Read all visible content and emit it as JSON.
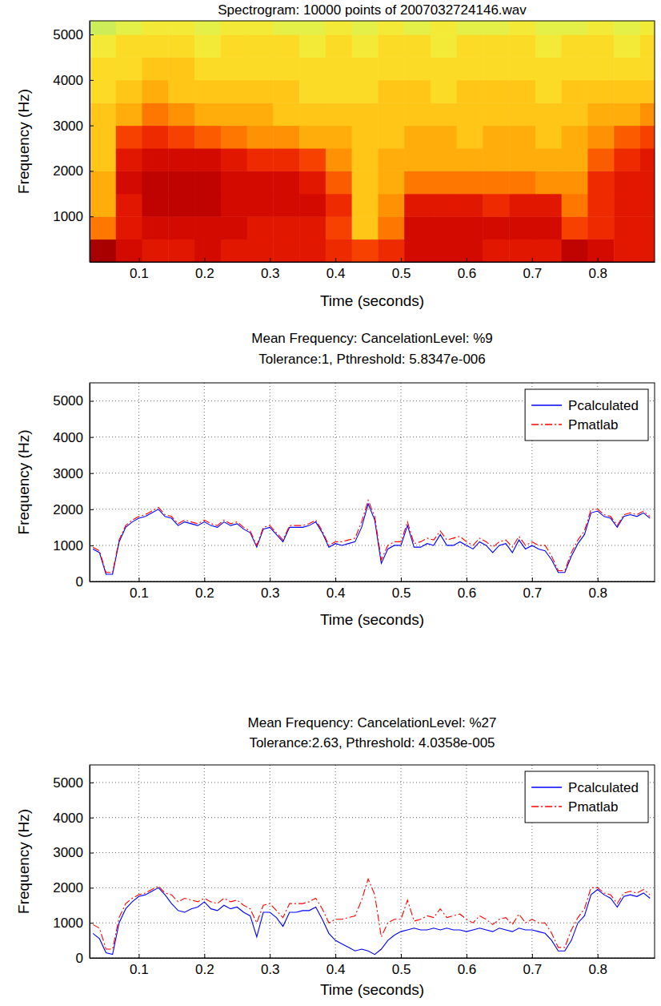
{
  "chart_data": [
    {
      "type": "heatmap",
      "title": "Spectrogram: 10000 points of 2007032724146.wav",
      "x_label": "Time (seconds)",
      "y_label": "Frequency (Hz)",
      "x": [
        0.045,
        0.085,
        0.125,
        0.165,
        0.205,
        0.245,
        0.285,
        0.325,
        0.365,
        0.405,
        0.445,
        0.485,
        0.525,
        0.565,
        0.605,
        0.645,
        0.685,
        0.725,
        0.765,
        0.805,
        0.845,
        0.885
      ],
      "y": [
        250,
        750,
        1250,
        1750,
        2250,
        2750,
        3250,
        3750,
        4250,
        4750,
        5250
      ],
      "values": [
        [
          0.95,
          0.85,
          0.8,
          0.8,
          0.85,
          0.8,
          0.8,
          0.8,
          0.8,
          0.75,
          0.7,
          0.75,
          0.85,
          0.85,
          0.85,
          0.8,
          0.8,
          0.8,
          0.9,
          0.85,
          0.8,
          0.8
        ],
        [
          0.6,
          0.8,
          0.85,
          0.85,
          0.85,
          0.85,
          0.8,
          0.8,
          0.8,
          0.7,
          0.45,
          0.6,
          0.85,
          0.85,
          0.85,
          0.85,
          0.85,
          0.85,
          0.7,
          0.75,
          0.8,
          0.8
        ],
        [
          0.5,
          0.8,
          0.9,
          0.9,
          0.9,
          0.85,
          0.85,
          0.85,
          0.85,
          0.75,
          0.45,
          0.55,
          0.8,
          0.8,
          0.8,
          0.75,
          0.8,
          0.8,
          0.6,
          0.75,
          0.8,
          0.8
        ],
        [
          0.5,
          0.85,
          0.9,
          0.9,
          0.9,
          0.85,
          0.85,
          0.85,
          0.8,
          0.65,
          0.45,
          0.5,
          0.6,
          0.6,
          0.6,
          0.6,
          0.6,
          0.55,
          0.55,
          0.75,
          0.8,
          0.8
        ],
        [
          0.45,
          0.8,
          0.85,
          0.85,
          0.85,
          0.8,
          0.75,
          0.75,
          0.7,
          0.55,
          0.45,
          0.5,
          0.5,
          0.5,
          0.5,
          0.5,
          0.5,
          0.5,
          0.5,
          0.65,
          0.75,
          0.8
        ],
        [
          0.45,
          0.7,
          0.75,
          0.7,
          0.65,
          0.6,
          0.55,
          0.55,
          0.5,
          0.5,
          0.45,
          0.45,
          0.5,
          0.5,
          0.45,
          0.5,
          0.5,
          0.45,
          0.5,
          0.55,
          0.65,
          0.7
        ],
        [
          0.45,
          0.5,
          0.6,
          0.55,
          0.5,
          0.5,
          0.5,
          0.45,
          0.45,
          0.45,
          0.45,
          0.45,
          0.45,
          0.45,
          0.45,
          0.45,
          0.45,
          0.45,
          0.45,
          0.5,
          0.5,
          0.55
        ],
        [
          0.4,
          0.45,
          0.5,
          0.45,
          0.45,
          0.45,
          0.45,
          0.45,
          0.4,
          0.4,
          0.4,
          0.45,
          0.45,
          0.4,
          0.45,
          0.45,
          0.45,
          0.4,
          0.45,
          0.45,
          0.45,
          0.45
        ],
        [
          0.4,
          0.4,
          0.45,
          0.45,
          0.4,
          0.4,
          0.4,
          0.4,
          0.4,
          0.4,
          0.4,
          0.4,
          0.4,
          0.4,
          0.4,
          0.4,
          0.4,
          0.4,
          0.4,
          0.4,
          0.4,
          0.4
        ],
        [
          0.35,
          0.4,
          0.4,
          0.4,
          0.35,
          0.4,
          0.4,
          0.4,
          0.35,
          0.4,
          0.35,
          0.4,
          0.4,
          0.35,
          0.4,
          0.4,
          0.4,
          0.35,
          0.4,
          0.4,
          0.35,
          0.4
        ],
        [
          0.25,
          0.3,
          0.35,
          0.35,
          0.3,
          0.35,
          0.35,
          0.3,
          0.3,
          0.35,
          0.3,
          0.35,
          0.3,
          0.35,
          0.3,
          0.3,
          0.35,
          0.3,
          0.3,
          0.35,
          0.3,
          0.35
        ]
      ],
      "zlim": [
        0,
        1
      ],
      "xlim": [
        0.025,
        0.887
      ],
      "ylim": [
        0,
        5300
      ],
      "xticks": [
        0.1,
        0.2,
        0.3,
        0.4,
        0.5,
        0.6,
        0.7,
        0.8
      ],
      "yticks": [
        1000,
        2000,
        3000,
        4000,
        5000
      ],
      "grid": false
    },
    {
      "type": "line",
      "title": "Mean Frequency: CancelationLevel: %9",
      "subtitle": "Tolerance:1, Pthreshold: 5.8347e-006",
      "x_label": "Time (seconds)",
      "y_label": "Frequency (Hz)",
      "x": [
        0.03,
        0.04,
        0.05,
        0.06,
        0.07,
        0.08,
        0.09,
        0.1,
        0.11,
        0.12,
        0.13,
        0.14,
        0.15,
        0.16,
        0.17,
        0.18,
        0.19,
        0.2,
        0.21,
        0.22,
        0.23,
        0.24,
        0.25,
        0.26,
        0.27,
        0.28,
        0.29,
        0.3,
        0.31,
        0.32,
        0.33,
        0.34,
        0.35,
        0.36,
        0.37,
        0.38,
        0.39,
        0.4,
        0.41,
        0.42,
        0.43,
        0.44,
        0.45,
        0.46,
        0.47,
        0.48,
        0.49,
        0.5,
        0.51,
        0.52,
        0.53,
        0.54,
        0.55,
        0.56,
        0.57,
        0.58,
        0.59,
        0.6,
        0.61,
        0.62,
        0.63,
        0.64,
        0.65,
        0.66,
        0.67,
        0.68,
        0.69,
        0.7,
        0.71,
        0.72,
        0.73,
        0.74,
        0.75,
        0.76,
        0.77,
        0.78,
        0.79,
        0.8,
        0.81,
        0.82,
        0.83,
        0.84,
        0.85,
        0.86,
        0.87,
        0.88
      ],
      "series": [
        {
          "name": "Pcalculated",
          "color": "#0000ff",
          "line_style": "solid",
          "values": [
            900,
            800,
            200,
            200,
            1100,
            1500,
            1650,
            1750,
            1800,
            1900,
            2000,
            1800,
            1750,
            1550,
            1650,
            1600,
            1550,
            1650,
            1550,
            1500,
            1650,
            1550,
            1600,
            1450,
            1350,
            950,
            1450,
            1500,
            1300,
            1100,
            1500,
            1500,
            1500,
            1550,
            1650,
            1350,
            950,
            1050,
            1000,
            1050,
            1100,
            1500,
            2150,
            1700,
            500,
            900,
            1000,
            1000,
            1550,
            950,
            950,
            1050,
            1000,
            1300,
            1000,
            1000,
            1100,
            1000,
            900,
            1100,
            1000,
            800,
            1000,
            1050,
            800,
            1150,
            900,
            1000,
            900,
            850,
            600,
            250,
            250,
            700,
            1050,
            1300,
            1900,
            1950,
            1800,
            1750,
            1500,
            1800,
            1850,
            1800,
            1900,
            1750
          ]
        },
        {
          "name": "Pmatlab",
          "color": "#ff0000",
          "line_style": "dashdot",
          "values": [
            950,
            850,
            250,
            250,
            1150,
            1550,
            1700,
            1800,
            1850,
            1950,
            2050,
            1850,
            1800,
            1600,
            1700,
            1650,
            1600,
            1700,
            1600,
            1550,
            1700,
            1600,
            1650,
            1500,
            1400,
            1000,
            1500,
            1550,
            1350,
            1150,
            1550,
            1550,
            1550,
            1600,
            1700,
            1400,
            1000,
            1100,
            1100,
            1150,
            1200,
            1650,
            2250,
            1800,
            600,
            1000,
            1100,
            1100,
            1650,
            1050,
            1100,
            1200,
            1150,
            1400,
            1150,
            1200,
            1250,
            1100,
            1000,
            1200,
            1100,
            950,
            1100,
            1150,
            950,
            1250,
            1000,
            1100,
            1000,
            1000,
            700,
            300,
            300,
            800,
            1150,
            1400,
            2000,
            2000,
            1850,
            1800,
            1550,
            1850,
            1900,
            1850,
            1950,
            1800
          ]
        }
      ],
      "xlim": [
        0.025,
        0.887
      ],
      "ylim": [
        0,
        5500
      ],
      "xticks": [
        0.1,
        0.2,
        0.3,
        0.4,
        0.5,
        0.6,
        0.7,
        0.8
      ],
      "yticks": [
        0,
        1000,
        2000,
        3000,
        4000,
        5000
      ],
      "grid": true,
      "legend": "upper right"
    },
    {
      "type": "line",
      "title": "Mean Frequency: CancelationLevel: %27",
      "subtitle": "Tolerance:2.63, Pthreshold: 4.0358e-005",
      "x_label": "Time (seconds)",
      "y_label": "Frequency (Hz)",
      "x": [
        0.03,
        0.04,
        0.05,
        0.06,
        0.07,
        0.08,
        0.09,
        0.1,
        0.11,
        0.12,
        0.13,
        0.14,
        0.15,
        0.16,
        0.17,
        0.18,
        0.19,
        0.2,
        0.21,
        0.22,
        0.23,
        0.24,
        0.25,
        0.26,
        0.27,
        0.28,
        0.29,
        0.3,
        0.31,
        0.32,
        0.33,
        0.34,
        0.35,
        0.36,
        0.37,
        0.38,
        0.39,
        0.4,
        0.41,
        0.42,
        0.43,
        0.44,
        0.45,
        0.46,
        0.47,
        0.48,
        0.49,
        0.5,
        0.51,
        0.52,
        0.53,
        0.54,
        0.55,
        0.56,
        0.57,
        0.58,
        0.59,
        0.6,
        0.61,
        0.62,
        0.63,
        0.64,
        0.65,
        0.66,
        0.67,
        0.68,
        0.69,
        0.7,
        0.71,
        0.72,
        0.73,
        0.74,
        0.75,
        0.76,
        0.77,
        0.78,
        0.79,
        0.8,
        0.81,
        0.82,
        0.83,
        0.84,
        0.85,
        0.86,
        0.87,
        0.88
      ],
      "series": [
        {
          "name": "Pcalculated",
          "color": "#0000ff",
          "line_style": "solid",
          "values": [
            700,
            550,
            150,
            100,
            1000,
            1400,
            1600,
            1750,
            1800,
            1900,
            2000,
            1800,
            1550,
            1350,
            1300,
            1400,
            1450,
            1600,
            1400,
            1350,
            1500,
            1400,
            1450,
            1300,
            1200,
            600,
            1300,
            1300,
            1150,
            900,
            1300,
            1300,
            1350,
            1350,
            1450,
            1100,
            700,
            500,
            400,
            300,
            200,
            250,
            200,
            100,
            250,
            500,
            650,
            750,
            800,
            850,
            800,
            800,
            850,
            800,
            850,
            800,
            800,
            750,
            800,
            850,
            800,
            750,
            850,
            800,
            750,
            850,
            800,
            800,
            750,
            700,
            500,
            200,
            200,
            500,
            1000,
            1200,
            1800,
            1950,
            1800,
            1700,
            1450,
            1750,
            1800,
            1750,
            1850,
            1700
          ]
        },
        {
          "name": "Pmatlab",
          "color": "#ff0000",
          "line_style": "dashdot",
          "values": [
            950,
            850,
            250,
            250,
            1150,
            1550,
            1700,
            1800,
            1850,
            1950,
            2050,
            1850,
            1800,
            1600,
            1700,
            1650,
            1600,
            1700,
            1600,
            1550,
            1700,
            1600,
            1650,
            1500,
            1400,
            1000,
            1500,
            1550,
            1350,
            1150,
            1550,
            1550,
            1550,
            1600,
            1700,
            1400,
            1000,
            1100,
            1100,
            1150,
            1200,
            1650,
            2250,
            1800,
            600,
            1000,
            1100,
            1100,
            1650,
            1050,
            1100,
            1200,
            1150,
            1400,
            1150,
            1200,
            1250,
            1100,
            1000,
            1200,
            1100,
            950,
            1100,
            1150,
            950,
            1250,
            1000,
            1100,
            1000,
            1000,
            700,
            300,
            300,
            800,
            1150,
            1400,
            2000,
            2000,
            1850,
            1800,
            1550,
            1850,
            1900,
            1850,
            1950,
            1800
          ]
        }
      ],
      "xlim": [
        0.025,
        0.887
      ],
      "ylim": [
        0,
        5500
      ],
      "xticks": [
        0.1,
        0.2,
        0.3,
        0.4,
        0.5,
        0.6,
        0.7,
        0.8
      ],
      "yticks": [
        0,
        1000,
        2000,
        3000,
        4000,
        5000
      ],
      "grid": true,
      "legend": "upper right"
    }
  ]
}
